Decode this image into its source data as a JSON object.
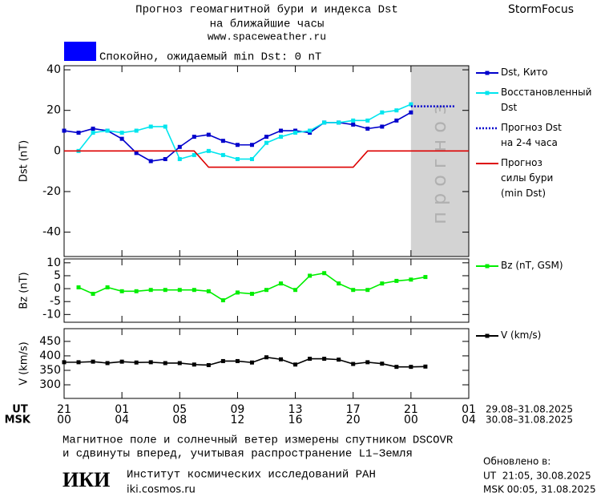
{
  "header": {
    "title": "Прогноз геомагнитной бури и индекса Dst",
    "title_line2": "на ближайшие часы",
    "url": "www.spaceweather.ru",
    "brand": "StormFocus"
  },
  "status": {
    "color": "#0000ff",
    "text": "Спокойно, ожидаемый min Dst: 0 nT"
  },
  "chart_data": [
    {
      "type": "line",
      "ylabel": "Dst (nT)",
      "xlim": [
        0,
        28
      ],
      "ylim": [
        -52,
        42
      ],
      "yticks": [
        -40,
        -20,
        0,
        20,
        40
      ],
      "forecast_band": {
        "x": [
          24,
          28
        ],
        "label": "прогноз",
        "color": "#d3d3d3"
      },
      "series": [
        {
          "name": "Dst, Кито",
          "color": "#0000cc",
          "markers": true,
          "x": [
            0,
            1,
            2,
            3,
            4,
            5,
            6,
            7,
            8,
            9,
            10,
            11,
            12,
            13,
            14,
            15,
            16,
            17,
            18,
            19,
            20,
            21,
            22,
            23,
            24
          ],
          "values": [
            10,
            9,
            11,
            10,
            6,
            -1,
            -5,
            -4,
            2,
            7,
            8,
            5,
            3,
            3,
            7,
            10,
            10,
            9,
            14,
            14,
            13,
            11,
            12,
            15,
            19
          ]
        },
        {
          "name": "Восстановленный\nDst",
          "color": "#00e5ee",
          "markers": true,
          "x": [
            1,
            2,
            3,
            4,
            5,
            6,
            7,
            8,
            9,
            10,
            11,
            12,
            13,
            14,
            15,
            16,
            17,
            18,
            19,
            20,
            21,
            22,
            23,
            24
          ],
          "values": [
            0,
            9,
            10,
            9,
            10,
            12,
            12,
            -4,
            -2,
            0,
            -2,
            -4,
            -4,
            4,
            7,
            9,
            10,
            14,
            14,
            15,
            15,
            19,
            20,
            23
          ]
        },
        {
          "name": "Прогноз Dst\nна 2-4 часа",
          "color": "#0000cc",
          "style": "dotted",
          "x": [
            24,
            25,
            26,
            27
          ],
          "values": [
            22,
            22,
            22,
            22
          ]
        },
        {
          "name": "Прогноз\nсилы бури\n(min Dst)",
          "color": "#dd0000",
          "x": [
            0,
            9,
            10,
            20,
            21,
            28
          ],
          "values": [
            0,
            0,
            -8,
            -8,
            0,
            0
          ]
        }
      ]
    },
    {
      "type": "line",
      "ylabel": "Bz (nT)",
      "xlim": [
        0,
        28
      ],
      "ylim": [
        -13,
        11.5
      ],
      "yticks": [
        -10,
        -5,
        0,
        5,
        10
      ],
      "series": [
        {
          "name": "Bz (nT, GSM)",
          "color": "#00ee00",
          "markers": true,
          "x": [
            1,
            2,
            3,
            4,
            5,
            6,
            7,
            8,
            9,
            10,
            11,
            12,
            13,
            14,
            15,
            16,
            17,
            18,
            19,
            20,
            21,
            22,
            23,
            24,
            25
          ],
          "values": [
            0.5,
            -2,
            0.5,
            -1,
            -1,
            -0.5,
            -0.5,
            -0.5,
            -0.5,
            -1,
            -4.5,
            -1.5,
            -2,
            -0.5,
            2,
            -0.5,
            5,
            6,
            2,
            -0.5,
            -0.5,
            2,
            3,
            3.5,
            4.5
          ]
        }
      ]
    },
    {
      "type": "line",
      "ylabel": "V (km/s)",
      "xlim": [
        0,
        28
      ],
      "ylim": [
        253,
        494
      ],
      "yticks": [
        300,
        350,
        400,
        450
      ],
      "xticks": [
        {
          "value": 0,
          "label": "21"
        },
        {
          "value": 4,
          "label": "01"
        },
        {
          "value": 8,
          "label": "05"
        },
        {
          "value": 12,
          "label": "09"
        },
        {
          "value": 16,
          "label": "13"
        },
        {
          "value": 20,
          "label": "17"
        },
        {
          "value": 24,
          "label": "21"
        },
        {
          "value": 28,
          "label": "01"
        }
      ],
      "msk_xticks": [
        {
          "value": 0,
          "label": "00"
        },
        {
          "value": 4,
          "label": "04"
        },
        {
          "value": 8,
          "label": "08"
        },
        {
          "value": 12,
          "label": "12"
        },
        {
          "value": 16,
          "label": "16"
        },
        {
          "value": 20,
          "label": "20"
        },
        {
          "value": 24,
          "label": "00"
        },
        {
          "value": 28,
          "label": "04"
        }
      ],
      "series": [
        {
          "name": "V (km/s)",
          "color": "#000000",
          "markers": true,
          "x": [
            0,
            1,
            2,
            3,
            4,
            5,
            6,
            7,
            8,
            9,
            10,
            11,
            12,
            13,
            14,
            15,
            16,
            17,
            18,
            19,
            20,
            21,
            22,
            23,
            24,
            25
          ],
          "values": [
            378,
            378,
            380,
            375,
            380,
            377,
            378,
            375,
            375,
            370,
            368,
            382,
            382,
            377,
            395,
            388,
            370,
            390,
            390,
            387,
            372,
            378,
            373,
            362,
            362,
            363
          ]
        }
      ]
    }
  ],
  "footer": {
    "ut_label": "UT",
    "msk_label": "MSK",
    "ut_range": "29.08–31.08.2025",
    "msk_range": "30.08–31.08.2025",
    "note_line1": "Магнитное поле и солнечный ветер измерены спутником DSCOVR",
    "note_line2": "и сдвинуты вперед, учитывая распространение L1–Земля",
    "logo": "ИКИ",
    "institute": "Институт космических исследований РАН",
    "institute_url": "iki.cosmos.ru",
    "updated_title": "Обновлено в:",
    "updated_ut": "UT  21:05, 30.08.2025",
    "updated_msk": "MSK 00:05, 31.08.2025"
  }
}
